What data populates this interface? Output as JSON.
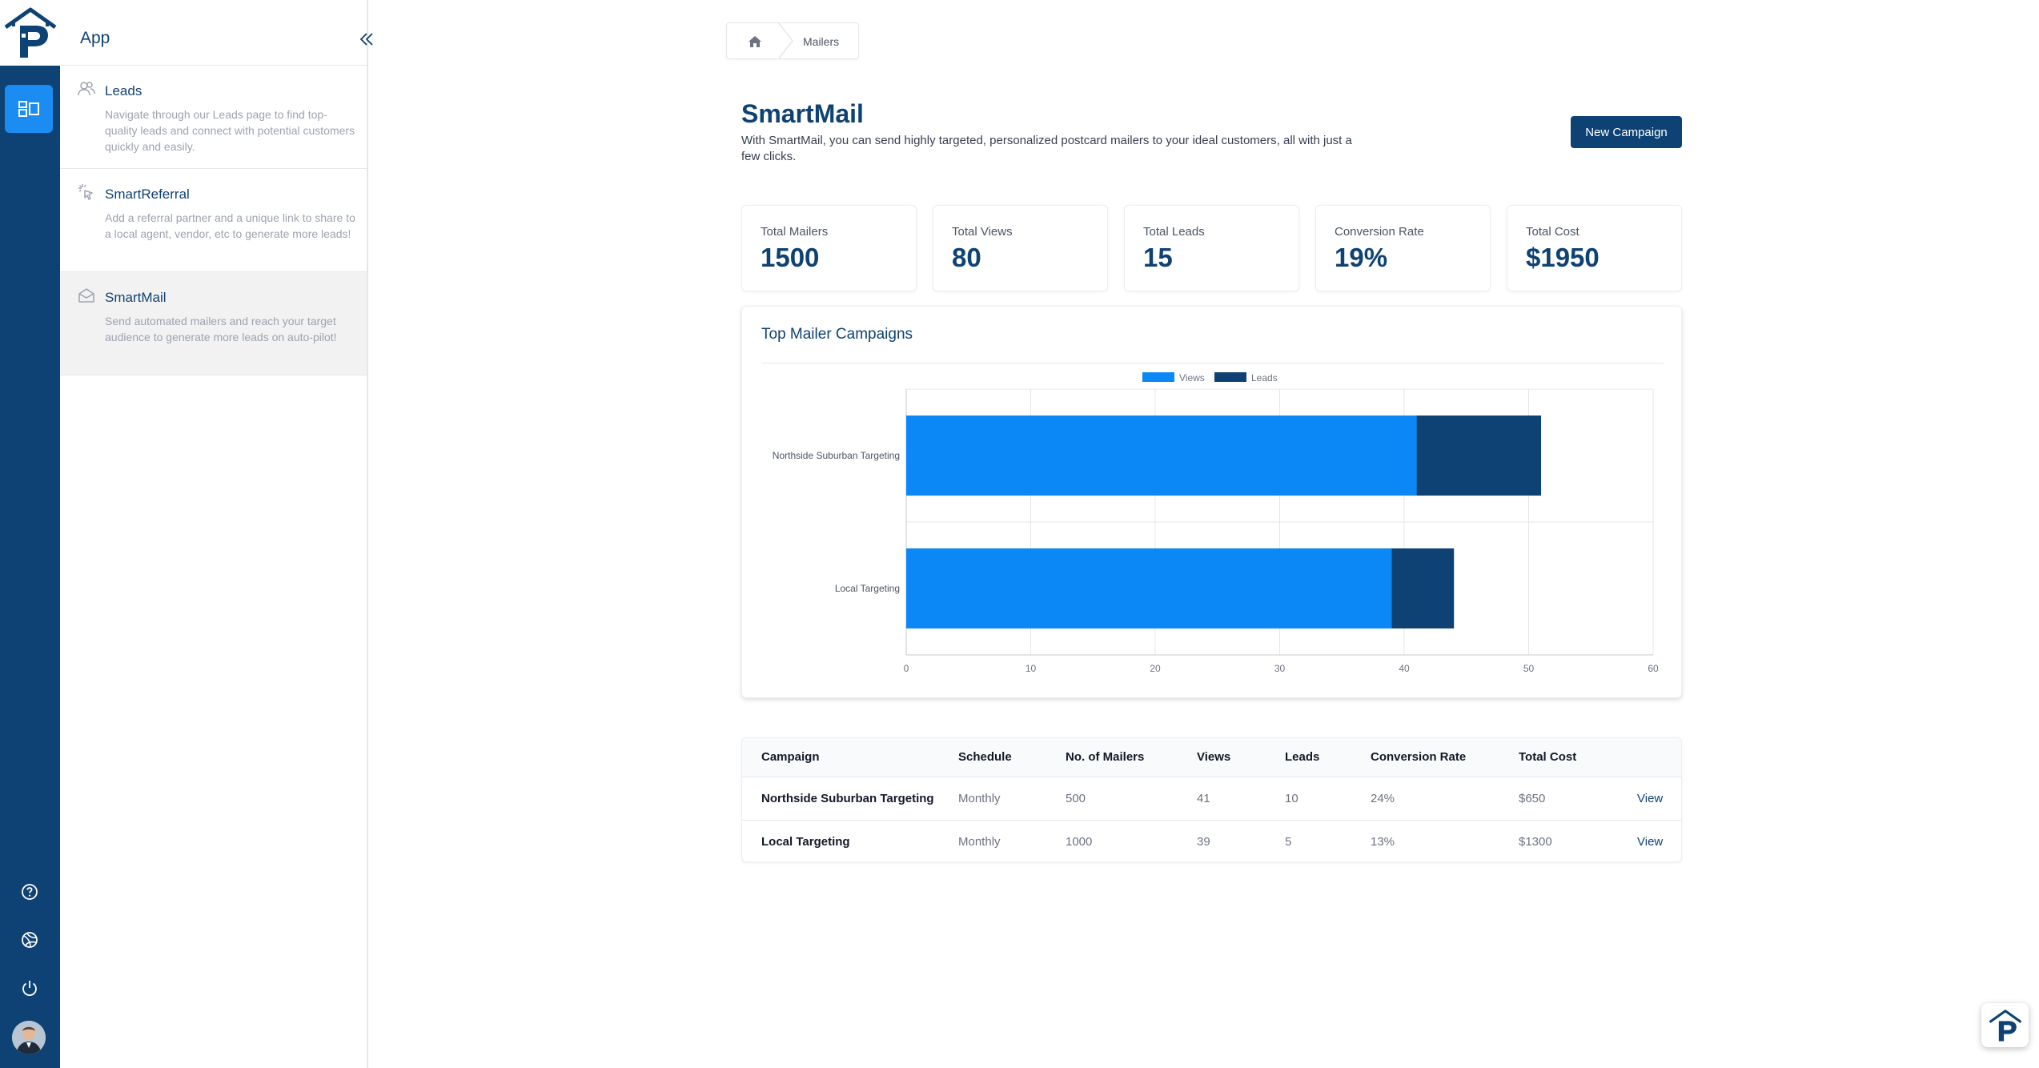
{
  "rail": {
    "logo_icon": "brand-house-p-logo",
    "active_icon": "apps-grid-icon",
    "bottom_icons": [
      "help-circle-icon",
      "globe-icon",
      "power-icon"
    ],
    "accent": "#0f4274",
    "active_color": "#1b8cf1"
  },
  "sidebar": {
    "title": "App",
    "collapse_icon": "double-chevron-left-icon",
    "items": [
      {
        "icon": "users-icon",
        "title": "Leads",
        "description": "Navigate through our Leads page to find top-quality leads and connect with potential customers quickly and easily.",
        "active": false
      },
      {
        "icon": "sparkle-click-icon",
        "title": "SmartReferral",
        "description": "Add a referral partner and a unique link to share to a local agent, vendor, etc to generate more leads!",
        "active": false
      },
      {
        "icon": "mail-open-icon",
        "title": "SmartMail",
        "description": "Send automated mailers and reach your target audience to generate more leads on auto-pilot!",
        "active": true
      }
    ]
  },
  "breadcrumb": {
    "home_icon": "home-icon",
    "current": "Mailers"
  },
  "header": {
    "title": "SmartMail",
    "description": "With SmartMail, you can send highly targeted, personalized postcard mailers to your ideal customers, all with just a few clicks.",
    "new_button": "New Campaign"
  },
  "stats": [
    {
      "label": "Total Mailers",
      "value": "1500"
    },
    {
      "label": "Total Views",
      "value": "80"
    },
    {
      "label": "Total Leads",
      "value": "15"
    },
    {
      "label": "Conversion Rate",
      "value": "19%"
    },
    {
      "label": "Total Cost",
      "value": "$1950"
    }
  ],
  "chart_data": {
    "type": "bar",
    "orientation": "horizontal",
    "stacked": true,
    "title": "Top Mailer Campaigns",
    "categories": [
      "Northside Suburban Targeting",
      "Local Targeting"
    ],
    "series": [
      {
        "name": "Views",
        "values": [
          41,
          39
        ],
        "color": "#0b88f6"
      },
      {
        "name": "Leads",
        "values": [
          10,
          5
        ],
        "color": "#0f4274"
      }
    ],
    "xlim": [
      0,
      60
    ],
    "xticks": [
      0,
      10,
      20,
      30,
      40,
      50,
      60
    ],
    "grid": true,
    "legend": "top-center"
  },
  "table": {
    "columns": [
      "Campaign",
      "Schedule",
      "No. of Mailers",
      "Views",
      "Leads",
      "Conversion Rate",
      "Total Cost"
    ],
    "rows": [
      {
        "campaign": "Northside Suburban Targeting",
        "schedule": "Monthly",
        "mailers": "500",
        "views": "41",
        "leads": "10",
        "conversion": "24%",
        "cost": "$650",
        "action": "View"
      },
      {
        "campaign": "Local Targeting",
        "schedule": "Monthly",
        "mailers": "1000",
        "views": "39",
        "leads": "5",
        "conversion": "13%",
        "cost": "$1300",
        "action": "View"
      }
    ]
  },
  "floating_widget": {
    "icon": "brand-house-p-logo"
  }
}
